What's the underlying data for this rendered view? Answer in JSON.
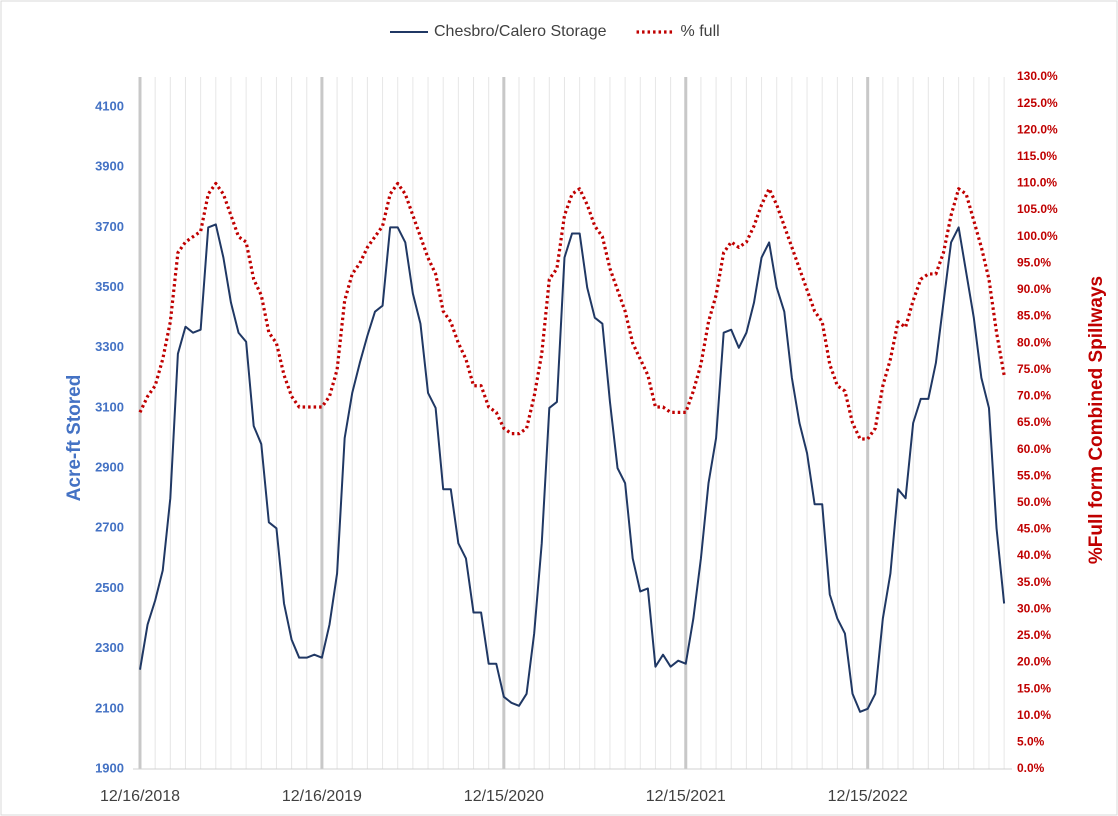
{
  "chart_data": {
    "type": "line",
    "y_label": "Acre-ft Stored",
    "y2_label": "%Full form Combined Spillways",
    "categories": [
      "12/16/2018",
      null,
      null,
      null,
      null,
      null,
      null,
      null,
      null,
      null,
      null,
      null,
      null,
      null,
      null,
      null,
      null,
      null,
      null,
      null,
      null,
      null,
      null,
      null,
      "12/16/2019",
      null,
      null,
      null,
      null,
      null,
      null,
      null,
      null,
      null,
      null,
      null,
      null,
      null,
      null,
      null,
      null,
      null,
      null,
      null,
      null,
      null,
      null,
      null,
      "12/15/2020",
      null,
      null,
      null,
      null,
      null,
      null,
      null,
      null,
      null,
      null,
      null,
      null,
      null,
      null,
      null,
      null,
      null,
      null,
      null,
      null,
      null,
      null,
      null,
      "12/15/2021",
      null,
      null,
      null,
      null,
      null,
      null,
      null,
      null,
      null,
      null,
      null,
      null,
      null,
      null,
      null,
      null,
      null,
      null,
      null,
      null,
      null,
      null,
      null,
      "12/15/2022",
      null,
      null,
      null,
      null,
      null,
      null,
      null,
      null,
      null,
      null,
      null,
      null,
      null,
      null,
      null,
      null,
      null,
      null
    ],
    "series": [
      {
        "name": "Chesbro/Calero Storage",
        "color": "#203864",
        "axis": "y",
        "dash": "solid",
        "values": [
          2230,
          2380,
          2460,
          2560,
          2800,
          3280,
          3370,
          3350,
          3360,
          3700,
          3710,
          3600,
          3450,
          3350,
          3320,
          3040,
          2980,
          2720,
          2700,
          2450,
          2330,
          2270,
          2270,
          2280,
          2270,
          2380,
          2550,
          3000,
          3150,
          3250,
          3340,
          3420,
          3440,
          3700,
          3700,
          3650,
          3480,
          3380,
          3150,
          3100,
          2830,
          2830,
          2650,
          2600,
          2420,
          2420,
          2250,
          2250,
          2140,
          2120,
          2110,
          2150,
          2350,
          2650,
          3100,
          3120,
          3600,
          3680,
          3680,
          3500,
          3400,
          3380,
          3120,
          2900,
          2850,
          2600,
          2490,
          2500,
          2240,
          2280,
          2240,
          2260,
          2250,
          2400,
          2600,
          2850,
          3000,
          3350,
          3360,
          3300,
          3350,
          3450,
          3600,
          3650,
          3500,
          3420,
          3200,
          3050,
          2950,
          2780,
          2780,
          2480,
          2400,
          2350,
          2150,
          2090,
          2100,
          2150,
          2400,
          2550,
          2830,
          2800,
          3050,
          3130,
          3130,
          3250,
          3450,
          3650,
          3700,
          3550,
          3400,
          3200,
          3100,
          2700,
          2450
        ]
      },
      {
        "name": "% full",
        "color": "#c00000",
        "axis": "y2",
        "dash": "dotted",
        "values": [
          67,
          70,
          72,
          77,
          84,
          97,
          99,
          100,
          101,
          108,
          110,
          108,
          104,
          100,
          99,
          92,
          89,
          82,
          80,
          74,
          70,
          68,
          68,
          68,
          68,
          70,
          75,
          88,
          93,
          95,
          98,
          100,
          102,
          108,
          110,
          108,
          104,
          100,
          96,
          93,
          86,
          84,
          80,
          77,
          72,
          72,
          68,
          67,
          64,
          63,
          63,
          64,
          70,
          78,
          92,
          94,
          104,
          108,
          109,
          106,
          102,
          100,
          94,
          90,
          86,
          80,
          77,
          74,
          68,
          68,
          67,
          67,
          67,
          71,
          76,
          84,
          89,
          97,
          99,
          98,
          99,
          102,
          106,
          109,
          106,
          102,
          98,
          94,
          90,
          86,
          84,
          76,
          72,
          71,
          65,
          62,
          62,
          64,
          72,
          77,
          84,
          83,
          88,
          92,
          93,
          93,
          97,
          104,
          109,
          108,
          103,
          98,
          92,
          82,
          74
        ]
      }
    ],
    "ylim": [
      1900,
      4200
    ],
    "yticks": [
      1900,
      2100,
      2300,
      2500,
      2700,
      2900,
      3100,
      3300,
      3500,
      3700,
      3900,
      4100
    ],
    "y2lim": [
      0,
      130
    ],
    "y2ticks": [
      {
        "value": 0,
        "label": "0.0%"
      },
      {
        "value": 5,
        "label": "5.0%"
      },
      {
        "value": 10,
        "label": "10.0%"
      },
      {
        "value": 15,
        "label": "15.0%"
      },
      {
        "value": 20,
        "label": "20.0%"
      },
      {
        "value": 25,
        "label": "25.0%"
      },
      {
        "value": 30,
        "label": "30.0%"
      },
      {
        "value": 35,
        "label": "35.0%"
      },
      {
        "value": 40,
        "label": "40.0%"
      },
      {
        "value": 45,
        "label": "45.0%"
      },
      {
        "value": 50,
        "label": "50.0%"
      },
      {
        "value": 55,
        "label": "55.0%"
      },
      {
        "value": 60,
        "label": "60.0%"
      },
      {
        "value": 65,
        "label": "65.0%"
      },
      {
        "value": 70,
        "label": "70.0%"
      },
      {
        "value": 75,
        "label": "75.0%"
      },
      {
        "value": 80,
        "label": "80.0%"
      },
      {
        "value": 85,
        "label": "85.0%"
      },
      {
        "value": 90,
        "label": "90.0%"
      },
      {
        "value": 95,
        "label": "95.0%"
      },
      {
        "value": 100,
        "label": "100.0%"
      },
      {
        "value": 105,
        "label": "105.0%"
      },
      {
        "value": 110,
        "label": "110.0%"
      },
      {
        "value": 115,
        "label": "115.0%"
      },
      {
        "value": 120,
        "label": "120.0%"
      },
      {
        "value": 125,
        "label": "125.0%"
      },
      {
        "value": 130,
        "label": "130.0%"
      }
    ],
    "y_color": "#4472c4",
    "y2_color": "#c00000",
    "grid": true
  }
}
